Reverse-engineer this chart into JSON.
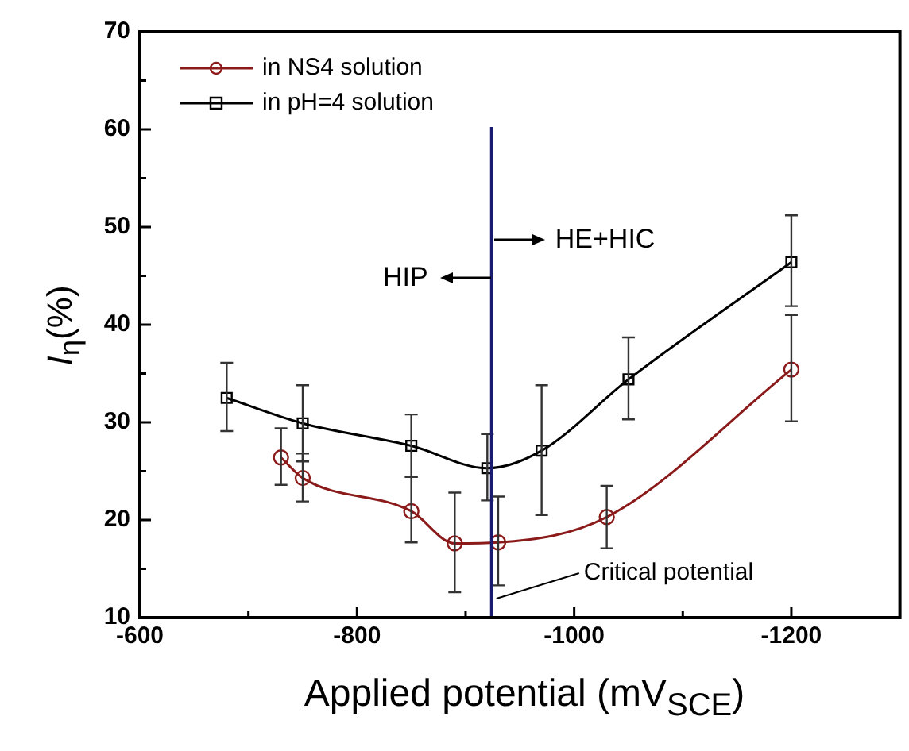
{
  "chart_data": {
    "type": "line",
    "xlabel": "Applied potential (mV$_{SCE}$)",
    "ylabel": "I$_{η}$(%)",
    "xlim": [
      -600,
      -1300
    ],
    "xticks": [
      -600,
      {
        "value": -700,
        "label": null
      },
      -800,
      {
        "value": -900,
        "label": null
      },
      -1000,
      {
        "value": -1100,
        "label": null
      },
      -1200
    ],
    "ylim": [
      10,
      70
    ],
    "yticks": [
      10,
      {
        "value": 15,
        "label": null
      },
      20,
      {
        "value": 25,
        "label": null
      },
      30,
      {
        "value": 35,
        "label": null
      },
      40,
      {
        "value": 45,
        "label": null
      },
      50,
      {
        "value": 55,
        "label": null
      },
      60,
      {
        "value": 65,
        "label": null
      },
      70
    ],
    "grid": false,
    "legend": "top left",
    "line_style": "solid",
    "series": [
      {
        "name": "in NS4 solution",
        "color": "#8b1a1a",
        "marker": "circle",
        "x": [
          -730,
          -750,
          -850,
          -890,
          -930,
          -1030,
          -1200
        ],
        "values": [
          26.4,
          24.3,
          20.9,
          17.6,
          17.7,
          20.3,
          35.4
        ],
        "errors": [
          [
            23.6,
            29.4
          ],
          [
            21.9,
            26.8
          ],
          [
            17.7,
            24.4
          ],
          [
            12.6,
            22.8
          ],
          [
            13.3,
            22.4
          ],
          [
            17.1,
            23.5
          ],
          [
            30.1,
            41.0
          ]
        ]
      },
      {
        "name": "in pH=4 solution",
        "color": "#000000",
        "marker": "square",
        "x": [
          -680,
          -750,
          -850,
          -920,
          -970,
          -1050,
          -1200
        ],
        "values": [
          32.5,
          29.9,
          27.6,
          25.3,
          27.1,
          34.4,
          46.4
        ],
        "errors": [
          [
            29.1,
            36.1
          ],
          [
            26.0,
            33.8
          ],
          [
            24.4,
            30.8
          ],
          [
            22.0,
            28.8
          ],
          [
            20.5,
            33.8
          ],
          [
            30.3,
            38.7
          ],
          [
            41.9,
            51.2
          ]
        ]
      }
    ],
    "ref_lines": [
      {
        "axis": "x",
        "value": -924,
        "label": "Critical potential",
        "color": "#1a1a6e"
      }
    ],
    "annotations": [
      "HIP",
      "HE+HIC"
    ]
  }
}
